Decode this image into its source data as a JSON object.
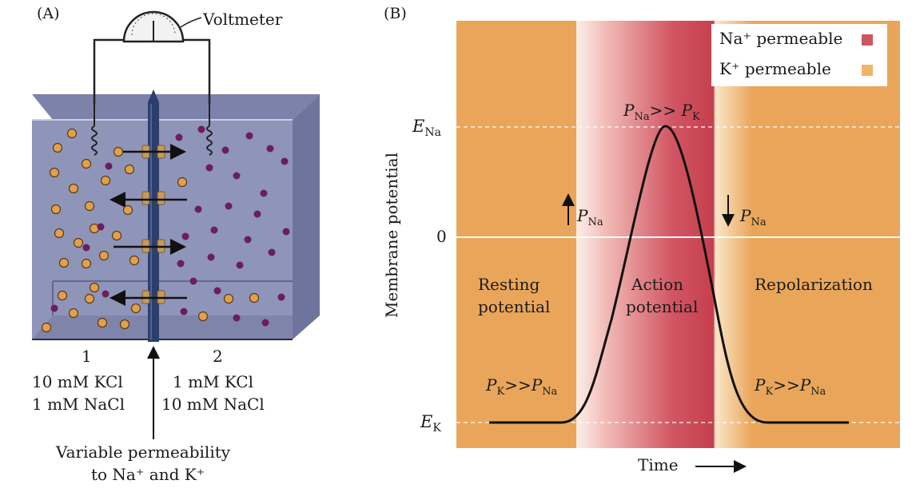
{
  "panel_a": {
    "label": "(A)",
    "voltmeter_label": "Voltmeter",
    "compartment_1": {
      "number": "1",
      "line1": "10 mM KCl",
      "line2": "1 mM NaCl"
    },
    "compartment_2": {
      "number": "2",
      "line1": "1 mM KCl",
      "line2": "10 mM NaCl"
    },
    "membrane_caption_line1": "Variable permeability",
    "membrane_caption_line2": "to Na⁺ and K⁺"
  },
  "panel_b": {
    "label": "(B)",
    "legend": [
      {
        "label": "Na⁺ permeable",
        "color": "#cc5560"
      },
      {
        "label": "K⁺ permeable",
        "color": "#e9a65a"
      }
    ],
    "y_axis_label": "Membrane potential",
    "x_axis_label": "Time",
    "y_ticks": {
      "e_na": "ENa",
      "zero": "0",
      "e_k": "EK"
    },
    "annotations": {
      "peak": "PNa>> PK",
      "rising": "PNa",
      "falling": "PNa",
      "rest_left": "PK>>PNa",
      "rest_right": "PK>>PNa"
    },
    "phases": [
      {
        "line1": "Resting",
        "line2": "potential"
      },
      {
        "line1": "Action",
        "line2": "potential"
      },
      {
        "line1": "Repolarization",
        "line2": ""
      }
    ]
  },
  "colors": {
    "orange": "#e9a65a",
    "red": "#c8424f",
    "tank": "#8c91b6",
    "tank_dark": "#6f749c",
    "membrane": "#2c3f6b",
    "k_ion": "#e0a14d",
    "na_ion": "#6a1f5c"
  }
}
